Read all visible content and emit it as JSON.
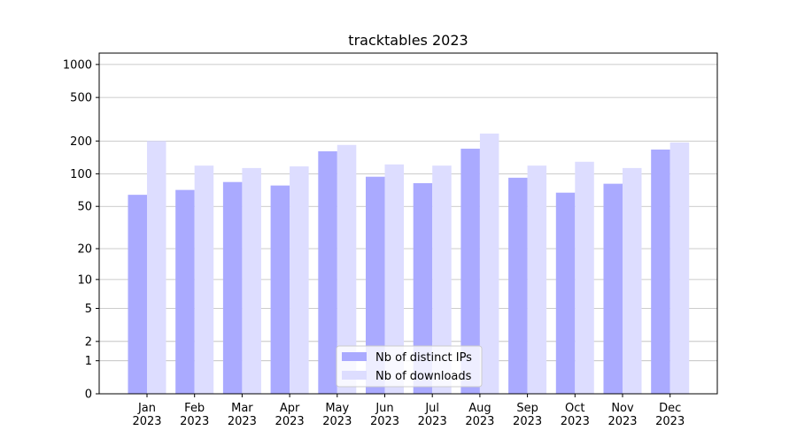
{
  "chart_data": {
    "type": "bar",
    "title": "tracktables 2023",
    "categories": [
      [
        "Jan",
        "2023"
      ],
      [
        "Feb",
        "2023"
      ],
      [
        "Mar",
        "2023"
      ],
      [
        "Apr",
        "2023"
      ],
      [
        "May",
        "2023"
      ],
      [
        "Jun",
        "2023"
      ],
      [
        "Jul",
        "2023"
      ],
      [
        "Aug",
        "2023"
      ],
      [
        "Sep",
        "2023"
      ],
      [
        "Oct",
        "2023"
      ],
      [
        "Nov",
        "2023"
      ],
      [
        "Dec",
        "2023"
      ]
    ],
    "series": [
      {
        "name": "Nb of distinct IPs",
        "color": "#aaaaff",
        "values": [
          64,
          71,
          84,
          78,
          161,
          94,
          82,
          170,
          92,
          67,
          81,
          167
        ]
      },
      {
        "name": "Nb of downloads",
        "color": "#ddddff",
        "values": [
          200,
          119,
          113,
          117,
          184,
          122,
          119,
          234,
          119,
          129,
          113,
          194
        ]
      }
    ],
    "yscale": "log1p",
    "ylim": [
      0,
      1270
    ],
    "yticks": [
      0,
      1,
      2,
      5,
      10,
      20,
      50,
      100,
      200,
      500,
      1000
    ],
    "grid": true,
    "legend": "lower center"
  }
}
